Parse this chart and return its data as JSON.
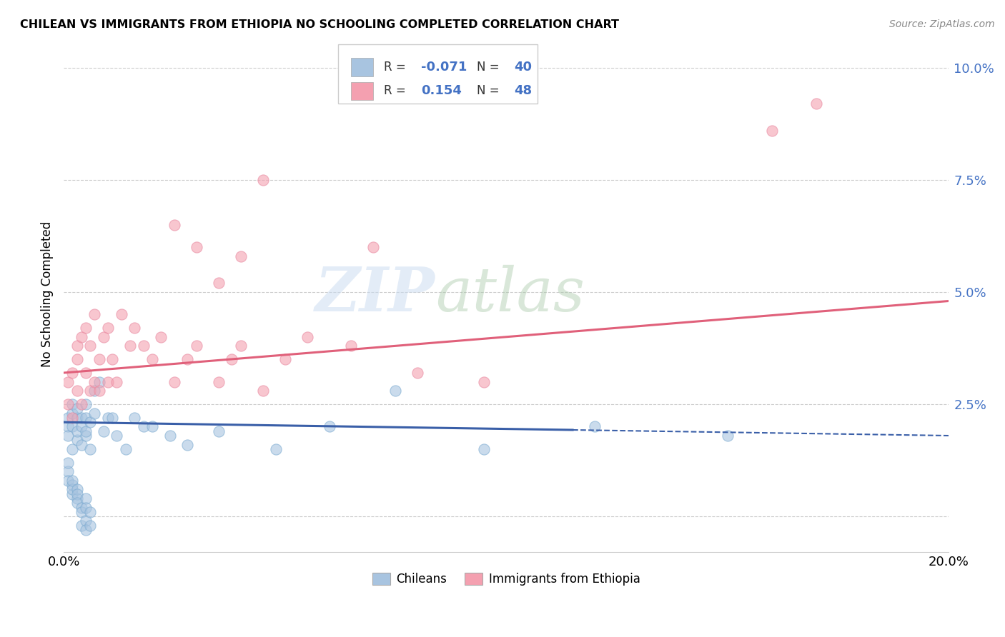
{
  "title": "CHILEAN VS IMMIGRANTS FROM ETHIOPIA NO SCHOOLING COMPLETED CORRELATION CHART",
  "source": "Source: ZipAtlas.com",
  "ylabel": "No Schooling Completed",
  "xlim": [
    0.0,
    0.2
  ],
  "ylim": [
    -0.008,
    0.107
  ],
  "yticks": [
    0.0,
    0.025,
    0.05,
    0.075,
    0.1
  ],
  "ytick_labels": [
    "",
    "2.5%",
    "5.0%",
    "7.5%",
    "10.0%"
  ],
  "xticks": [
    0.0,
    0.04,
    0.08,
    0.12,
    0.16,
    0.2
  ],
  "xtick_labels": [
    "0.0%",
    "",
    "",
    "",
    "",
    "20.0%"
  ],
  "chilean_color": "#a8c4e0",
  "ethiopia_color": "#f4a0b0",
  "chilean_line_color": "#3a5fa8",
  "ethiopia_line_color": "#e0607a",
  "watermark_zip": "ZIP",
  "watermark_atlas": "atlas",
  "chilean_x": [
    0.001,
    0.001,
    0.001,
    0.002,
    0.002,
    0.002,
    0.002,
    0.003,
    0.003,
    0.003,
    0.003,
    0.004,
    0.004,
    0.004,
    0.005,
    0.005,
    0.005,
    0.005,
    0.006,
    0.006,
    0.007,
    0.007,
    0.008,
    0.009,
    0.01,
    0.011,
    0.012,
    0.014,
    0.016,
    0.018,
    0.02,
    0.024,
    0.028,
    0.035,
    0.048,
    0.06,
    0.075,
    0.095,
    0.12,
    0.15
  ],
  "chilean_y": [
    0.02,
    0.022,
    0.018,
    0.015,
    0.02,
    0.023,
    0.025,
    0.017,
    0.022,
    0.019,
    0.024,
    0.016,
    0.022,
    0.02,
    0.018,
    0.022,
    0.025,
    0.019,
    0.015,
    0.021,
    0.023,
    0.028,
    0.03,
    0.019,
    0.022,
    0.022,
    0.018,
    0.015,
    0.022,
    0.02,
    0.02,
    0.018,
    0.016,
    0.019,
    0.015,
    0.02,
    0.028,
    0.015,
    0.02,
    0.018
  ],
  "chilean_y_low": [
    0.01,
    0.012,
    0.008,
    0.005,
    0.007,
    0.006,
    0.008,
    0.004,
    0.006,
    0.005,
    0.003,
    0.002,
    0.001,
    -0.002,
    -0.001,
    0.004,
    0.002,
    -0.003,
    0.001,
    -0.002,
    0.005,
    -0.002,
    -0.005,
    -0.003,
    0.01,
    0.008,
    -0.003,
    0.016,
    0.016,
    0.01,
    0.0,
    0.0,
    0.0,
    0.0,
    0.0,
    0.0,
    0.0,
    0.0,
    0.0,
    0.0
  ],
  "ethiopia_x": [
    0.001,
    0.001,
    0.002,
    0.002,
    0.003,
    0.003,
    0.003,
    0.004,
    0.004,
    0.005,
    0.005,
    0.006,
    0.006,
    0.007,
    0.007,
    0.008,
    0.008,
    0.009,
    0.01,
    0.01,
    0.011,
    0.012,
    0.013,
    0.015,
    0.016,
    0.018,
    0.02,
    0.022,
    0.025,
    0.028,
    0.03,
    0.035,
    0.038,
    0.04,
    0.045,
    0.05,
    0.055,
    0.065,
    0.08,
    0.095,
    0.03,
    0.035,
    0.025,
    0.04,
    0.045,
    0.07,
    0.16,
    0.17
  ],
  "ethiopia_y": [
    0.025,
    0.03,
    0.022,
    0.032,
    0.028,
    0.038,
    0.035,
    0.025,
    0.04,
    0.032,
    0.042,
    0.028,
    0.038,
    0.03,
    0.045,
    0.028,
    0.035,
    0.04,
    0.03,
    0.042,
    0.035,
    0.03,
    0.045,
    0.038,
    0.042,
    0.038,
    0.035,
    0.04,
    0.03,
    0.035,
    0.038,
    0.03,
    0.035,
    0.038,
    0.028,
    0.035,
    0.04,
    0.038,
    0.032,
    0.03,
    0.06,
    0.052,
    0.065,
    0.058,
    0.075,
    0.06,
    0.086,
    0.092
  ],
  "chilean_line_y0": 0.021,
  "chilean_line_y1": 0.018,
  "ethiopia_line_y0": 0.032,
  "ethiopia_line_y1": 0.048
}
